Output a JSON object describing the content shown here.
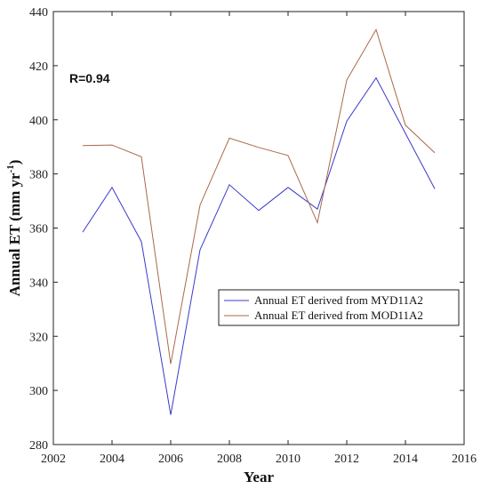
{
  "chart_data": {
    "type": "line",
    "xlabel": "Year",
    "ylabel_base": "Annual ET (mm yr",
    "ylabel_sup": "-1",
    "ylabel_close": ")",
    "annotation": "R=0.94",
    "xlim": [
      2002,
      2016
    ],
    "ylim": [
      280,
      440
    ],
    "xticks": [
      2002,
      2004,
      2006,
      2008,
      2010,
      2012,
      2014,
      2016
    ],
    "yticks": [
      280,
      300,
      320,
      340,
      360,
      380,
      400,
      420,
      440
    ],
    "x": [
      2003,
      2004,
      2005,
      2006,
      2007,
      2008,
      2009,
      2010,
      2011,
      2012,
      2013,
      2014,
      2015
    ],
    "series": [
      {
        "name": "Annual ET derived from MYD11A2",
        "color": "#3a3acc",
        "values": [
          358.5,
          375,
          355,
          291,
          352,
          376,
          366.5,
          375,
          367,
          399.5,
          415.5,
          395,
          374.5
        ]
      },
      {
        "name": "Annual ET derived from MOD11A2",
        "color": "#a8694a",
        "values": [
          390.5,
          390.7,
          386.3,
          309.8,
          368.5,
          393.2,
          389.8,
          386.8,
          362,
          414.7,
          433.3,
          398,
          387.8
        ]
      }
    ],
    "legend_position": "lower-right",
    "grid": false
  }
}
